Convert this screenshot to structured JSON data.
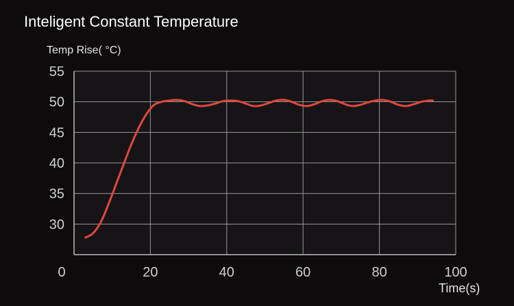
{
  "chart_data": {
    "type": "line",
    "title": "Inteligent Constant Temperature",
    "ylabel": "Temp Rise( °C)",
    "xlabel": "Time(s)",
    "xlim": [
      0,
      100
    ],
    "ylim": [
      25,
      55
    ],
    "x_ticks": [
      0,
      20,
      40,
      60,
      80,
      100
    ],
    "y_ticks": [
      30,
      35,
      40,
      45,
      50,
      55
    ],
    "grid": true,
    "line_color": "#e0483f",
    "background": "#0d0b0c",
    "series": [
      {
        "x": [
          3,
          5,
          7,
          9,
          11,
          13,
          15,
          17,
          19,
          21,
          23,
          25,
          27,
          29,
          31,
          33,
          35,
          37,
          39,
          41,
          43,
          45,
          47,
          49,
          51,
          53,
          55,
          57,
          59,
          61,
          63,
          65,
          67,
          69,
          71,
          73,
          75,
          77,
          79,
          81,
          83,
          85,
          87,
          89,
          91,
          93,
          94
        ],
        "y": [
          27.8,
          28.5,
          30.3,
          33.2,
          36.5,
          39.8,
          43.0,
          45.8,
          48.0,
          49.5,
          50.0,
          50.2,
          50.3,
          50.1,
          49.6,
          49.3,
          49.4,
          49.7,
          50.1,
          50.2,
          50.1,
          49.7,
          49.3,
          49.4,
          49.8,
          50.2,
          50.3,
          50.0,
          49.5,
          49.3,
          49.6,
          50.1,
          50.3,
          50.1,
          49.6,
          49.3,
          49.5,
          49.9,
          50.2,
          50.3,
          50.0,
          49.5,
          49.3,
          49.6,
          50.0,
          50.2,
          50.2
        ]
      }
    ]
  }
}
